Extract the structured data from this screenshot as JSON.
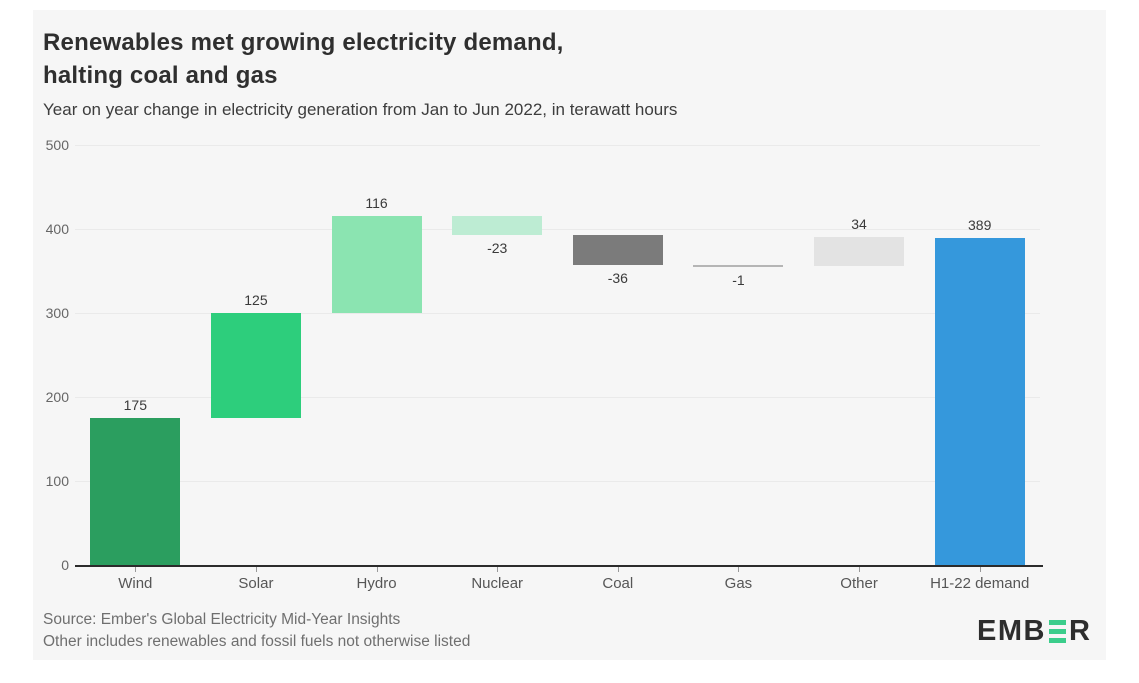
{
  "header": {
    "title_line1": "Renewables met growing electricity demand,",
    "title_line2": "halting coal and gas",
    "subtitle": "Year on year change in electricity generation from Jan to Jun 2022, in terawatt hours"
  },
  "chart_data": {
    "type": "bar",
    "subtype": "waterfall",
    "title": "Renewables met growing electricity demand, halting coal and gas",
    "subtitle": "Year on year change in electricity generation from Jan to Jun 2022, in terawatt hours",
    "unit": "terawatt hours",
    "categories": [
      "Wind",
      "Solar",
      "Hydro",
      "Nuclear",
      "Coal",
      "Gas",
      "Other",
      "H1-22 demand"
    ],
    "series": [
      {
        "name": "Wind",
        "value": 175,
        "kind": "delta",
        "color": "#2b9e5f"
      },
      {
        "name": "Solar",
        "value": 125,
        "kind": "delta",
        "color": "#2dce7c"
      },
      {
        "name": "Hydro",
        "value": 116,
        "kind": "delta",
        "color": "#8be4b1"
      },
      {
        "name": "Nuclear",
        "value": -23,
        "kind": "delta",
        "color": "#bdecd3"
      },
      {
        "name": "Coal",
        "value": -36,
        "kind": "delta",
        "color": "#7b7b7b"
      },
      {
        "name": "Gas",
        "value": -1,
        "kind": "delta",
        "color": "#b5b5b5"
      },
      {
        "name": "Other",
        "value": 34,
        "kind": "delta",
        "color": "#e3e3e3"
      },
      {
        "name": "H1-22 demand",
        "value": 389,
        "kind": "total",
        "color": "#3598dc"
      }
    ],
    "ylim": [
      0,
      500
    ],
    "yticks": [
      0,
      100,
      200,
      300,
      400,
      500
    ],
    "grid": "horizontal",
    "legend": "none"
  },
  "footer": {
    "source_line1": "Source: Ember's Global Electricity Mid-Year Insights",
    "source_line2": "Other includes renewables and fossil fuels not otherwise listed",
    "logo": {
      "part1": "EMB",
      "part2": "R",
      "accent_color": "#3bcd8b"
    }
  },
  "colors": {
    "card_background": "#f6f6f6",
    "page_background": "#ffffff",
    "axis_line": "#2b2b2b",
    "gridline": "#eaeaea",
    "title_text": "#2f2f2f",
    "muted_text": "#6f6f6f"
  }
}
